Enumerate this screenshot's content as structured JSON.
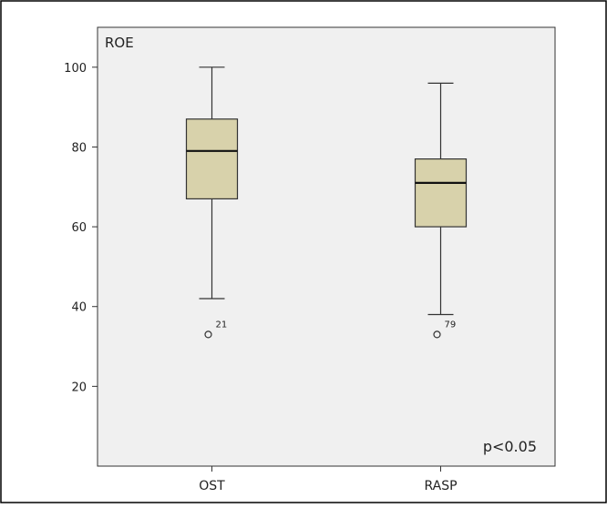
{
  "chart_data": {
    "type": "boxplot",
    "title": "ROE",
    "annotation": "p<0.05",
    "categories": [
      "OST",
      "RASP"
    ],
    "boxes": [
      {
        "category": "OST",
        "whisker_low": 42,
        "q1": 67,
        "median": 79,
        "q3": 87,
        "whisker_high": 100,
        "outliers": [
          {
            "value": 33,
            "label": "21"
          }
        ]
      },
      {
        "category": "RASP",
        "whisker_low": 38,
        "q1": 60,
        "median": 71,
        "q3": 77,
        "whisker_high": 96,
        "outliers": [
          {
            "value": 33,
            "label": "79"
          }
        ]
      }
    ],
    "ylim": [
      0,
      110
    ],
    "yticks": [
      20,
      40,
      60,
      80,
      100
    ],
    "grid": false,
    "colors": {
      "box_fill": "#d8d2ab",
      "plot_bg": "#f0f0f0",
      "stroke": "#333333"
    }
  }
}
